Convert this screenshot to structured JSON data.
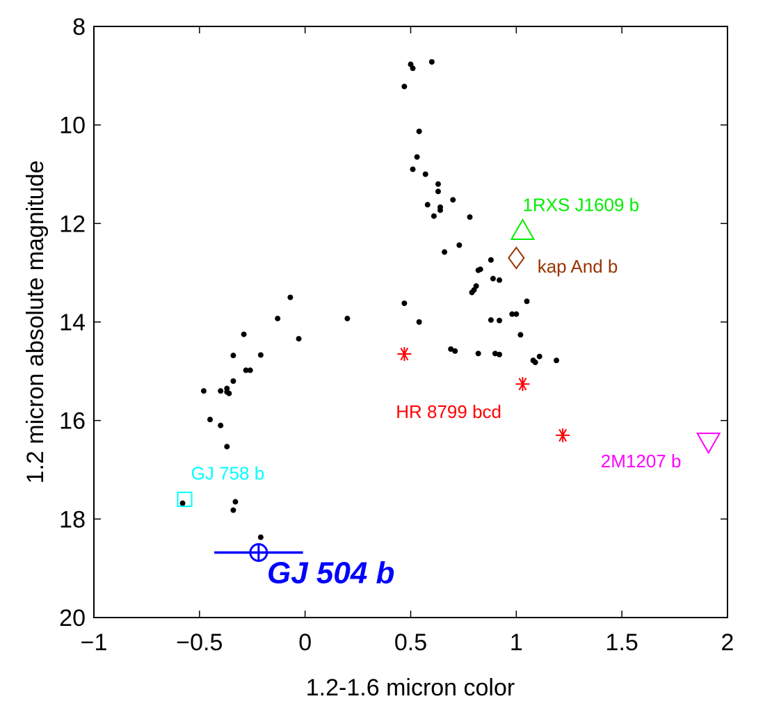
{
  "chart_data": {
    "type": "scatter",
    "title": "",
    "xlabel": "1.2-1.6 micron color",
    "ylabel": "1.2 micron absolute magnitude",
    "xlim": [
      -1,
      2
    ],
    "ylim": [
      8,
      20
    ],
    "y_inverted": true,
    "grid": false,
    "x_ticks": [
      -1,
      -0.5,
      0,
      0.5,
      1,
      1.5,
      2
    ],
    "x_tick_labels": [
      "−1",
      "−0.5",
      "0",
      "0.5",
      "1",
      "1.5",
      "2"
    ],
    "y_ticks": [
      8,
      10,
      12,
      14,
      16,
      18,
      20
    ],
    "y_tick_labels": [
      "8",
      "10",
      "12",
      "14",
      "16",
      "18",
      "20"
    ],
    "series": [
      {
        "marker": "dot",
        "color": "#000000",
        "points": [
          [
            0.5,
            8.77
          ],
          [
            0.6,
            8.72
          ],
          [
            0.51,
            8.85
          ],
          [
            0.47,
            9.22
          ],
          [
            0.54,
            10.13
          ],
          [
            0.53,
            10.65
          ],
          [
            0.51,
            10.9
          ],
          [
            0.57,
            11.0
          ],
          [
            0.63,
            11.2
          ],
          [
            0.63,
            11.35
          ],
          [
            0.7,
            11.52
          ],
          [
            0.58,
            11.62
          ],
          [
            0.64,
            11.67
          ],
          [
            0.64,
            11.73
          ],
          [
            0.61,
            11.85
          ],
          [
            0.78,
            11.87
          ],
          [
            0.73,
            12.44
          ],
          [
            0.66,
            12.58
          ],
          [
            0.88,
            12.74
          ],
          [
            0.83,
            12.93
          ],
          [
            0.82,
            12.95
          ],
          [
            0.89,
            13.12
          ],
          [
            0.92,
            13.15
          ],
          [
            0.81,
            13.27
          ],
          [
            0.8,
            13.35
          ],
          [
            0.79,
            13.4
          ],
          [
            0.47,
            13.62
          ],
          [
            1.05,
            13.58
          ],
          [
            0.98,
            13.84
          ],
          [
            1.0,
            13.84
          ],
          [
            0.88,
            13.96
          ],
          [
            0.92,
            13.97
          ],
          [
            0.54,
            14.0
          ],
          [
            1.02,
            14.26
          ],
          [
            0.69,
            14.55
          ],
          [
            0.71,
            14.59
          ],
          [
            0.82,
            14.64
          ],
          [
            0.9,
            14.64
          ],
          [
            0.92,
            14.66
          ],
          [
            1.11,
            14.7
          ],
          [
            1.08,
            14.78
          ],
          [
            1.09,
            14.82
          ],
          [
            1.19,
            14.78
          ],
          [
            -0.07,
            13.5
          ],
          [
            -0.13,
            13.93
          ],
          [
            0.2,
            13.93
          ],
          [
            -0.03,
            14.34
          ],
          [
            -0.29,
            14.25
          ],
          [
            -0.34,
            14.68
          ],
          [
            -0.21,
            14.67
          ],
          [
            -0.26,
            14.98
          ],
          [
            -0.28,
            14.98
          ],
          [
            -0.34,
            15.2
          ],
          [
            -0.37,
            15.35
          ],
          [
            -0.37,
            15.42
          ],
          [
            -0.36,
            15.45
          ],
          [
            -0.4,
            15.4
          ],
          [
            -0.48,
            15.4
          ],
          [
            -0.45,
            15.98
          ],
          [
            -0.4,
            16.1
          ],
          [
            -0.37,
            16.53
          ],
          [
            -0.33,
            17.65
          ],
          [
            -0.34,
            17.82
          ],
          [
            -0.58,
            17.68
          ],
          [
            -0.21,
            18.37
          ]
        ]
      },
      {
        "name": "HR 8799 bcd",
        "marker": "asterisk",
        "color": "#ff0000",
        "points": [
          [
            0.47,
            14.65
          ],
          [
            1.03,
            15.26
          ],
          [
            1.22,
            16.3
          ]
        ]
      },
      {
        "name": "1RXS J1609 b",
        "marker": "triangle-up",
        "color": "#00ee00",
        "points": [
          [
            1.03,
            12.15
          ]
        ]
      },
      {
        "name": "kap And b",
        "marker": "diamond",
        "color": "#993300",
        "points": [
          [
            1.0,
            12.7
          ]
        ]
      },
      {
        "name": "2M1207 b",
        "marker": "triangle-down",
        "color": "#ff00ff",
        "points": [
          [
            1.91,
            16.43
          ]
        ]
      },
      {
        "name": "GJ 758 b",
        "marker": "square",
        "color": "#00ffff",
        "points": [
          [
            -0.57,
            17.6
          ]
        ]
      },
      {
        "name": "GJ 504 b",
        "marker": "circle-plus",
        "color": "#0000ff",
        "points": [
          [
            -0.22,
            18.68
          ]
        ],
        "x_error": [
          [
            -0.43,
            -0.01
          ]
        ]
      }
    ],
    "annotations": [
      {
        "text": "1RXS J1609 b",
        "color": "#00ee00",
        "x": 1.03,
        "y": 11.75,
        "style": "normal"
      },
      {
        "text": "kap And b",
        "color": "#993300",
        "x": 1.1,
        "y": 13.0,
        "style": "normal"
      },
      {
        "text": "HR 8799 bcd",
        "color": "#ff0000",
        "x": 0.43,
        "y": 15.95,
        "style": "normal"
      },
      {
        "text": "2M1207 b",
        "color": "#ff00ff",
        "x": 1.4,
        "y": 16.95,
        "style": "normal"
      },
      {
        "text": "GJ 758 b",
        "color": "#00ffff",
        "x": -0.54,
        "y": 17.2,
        "style": "normal"
      },
      {
        "text": "GJ 504 b",
        "color": "#0000ff",
        "x": -0.18,
        "y": 19.3,
        "style": "big"
      }
    ]
  }
}
